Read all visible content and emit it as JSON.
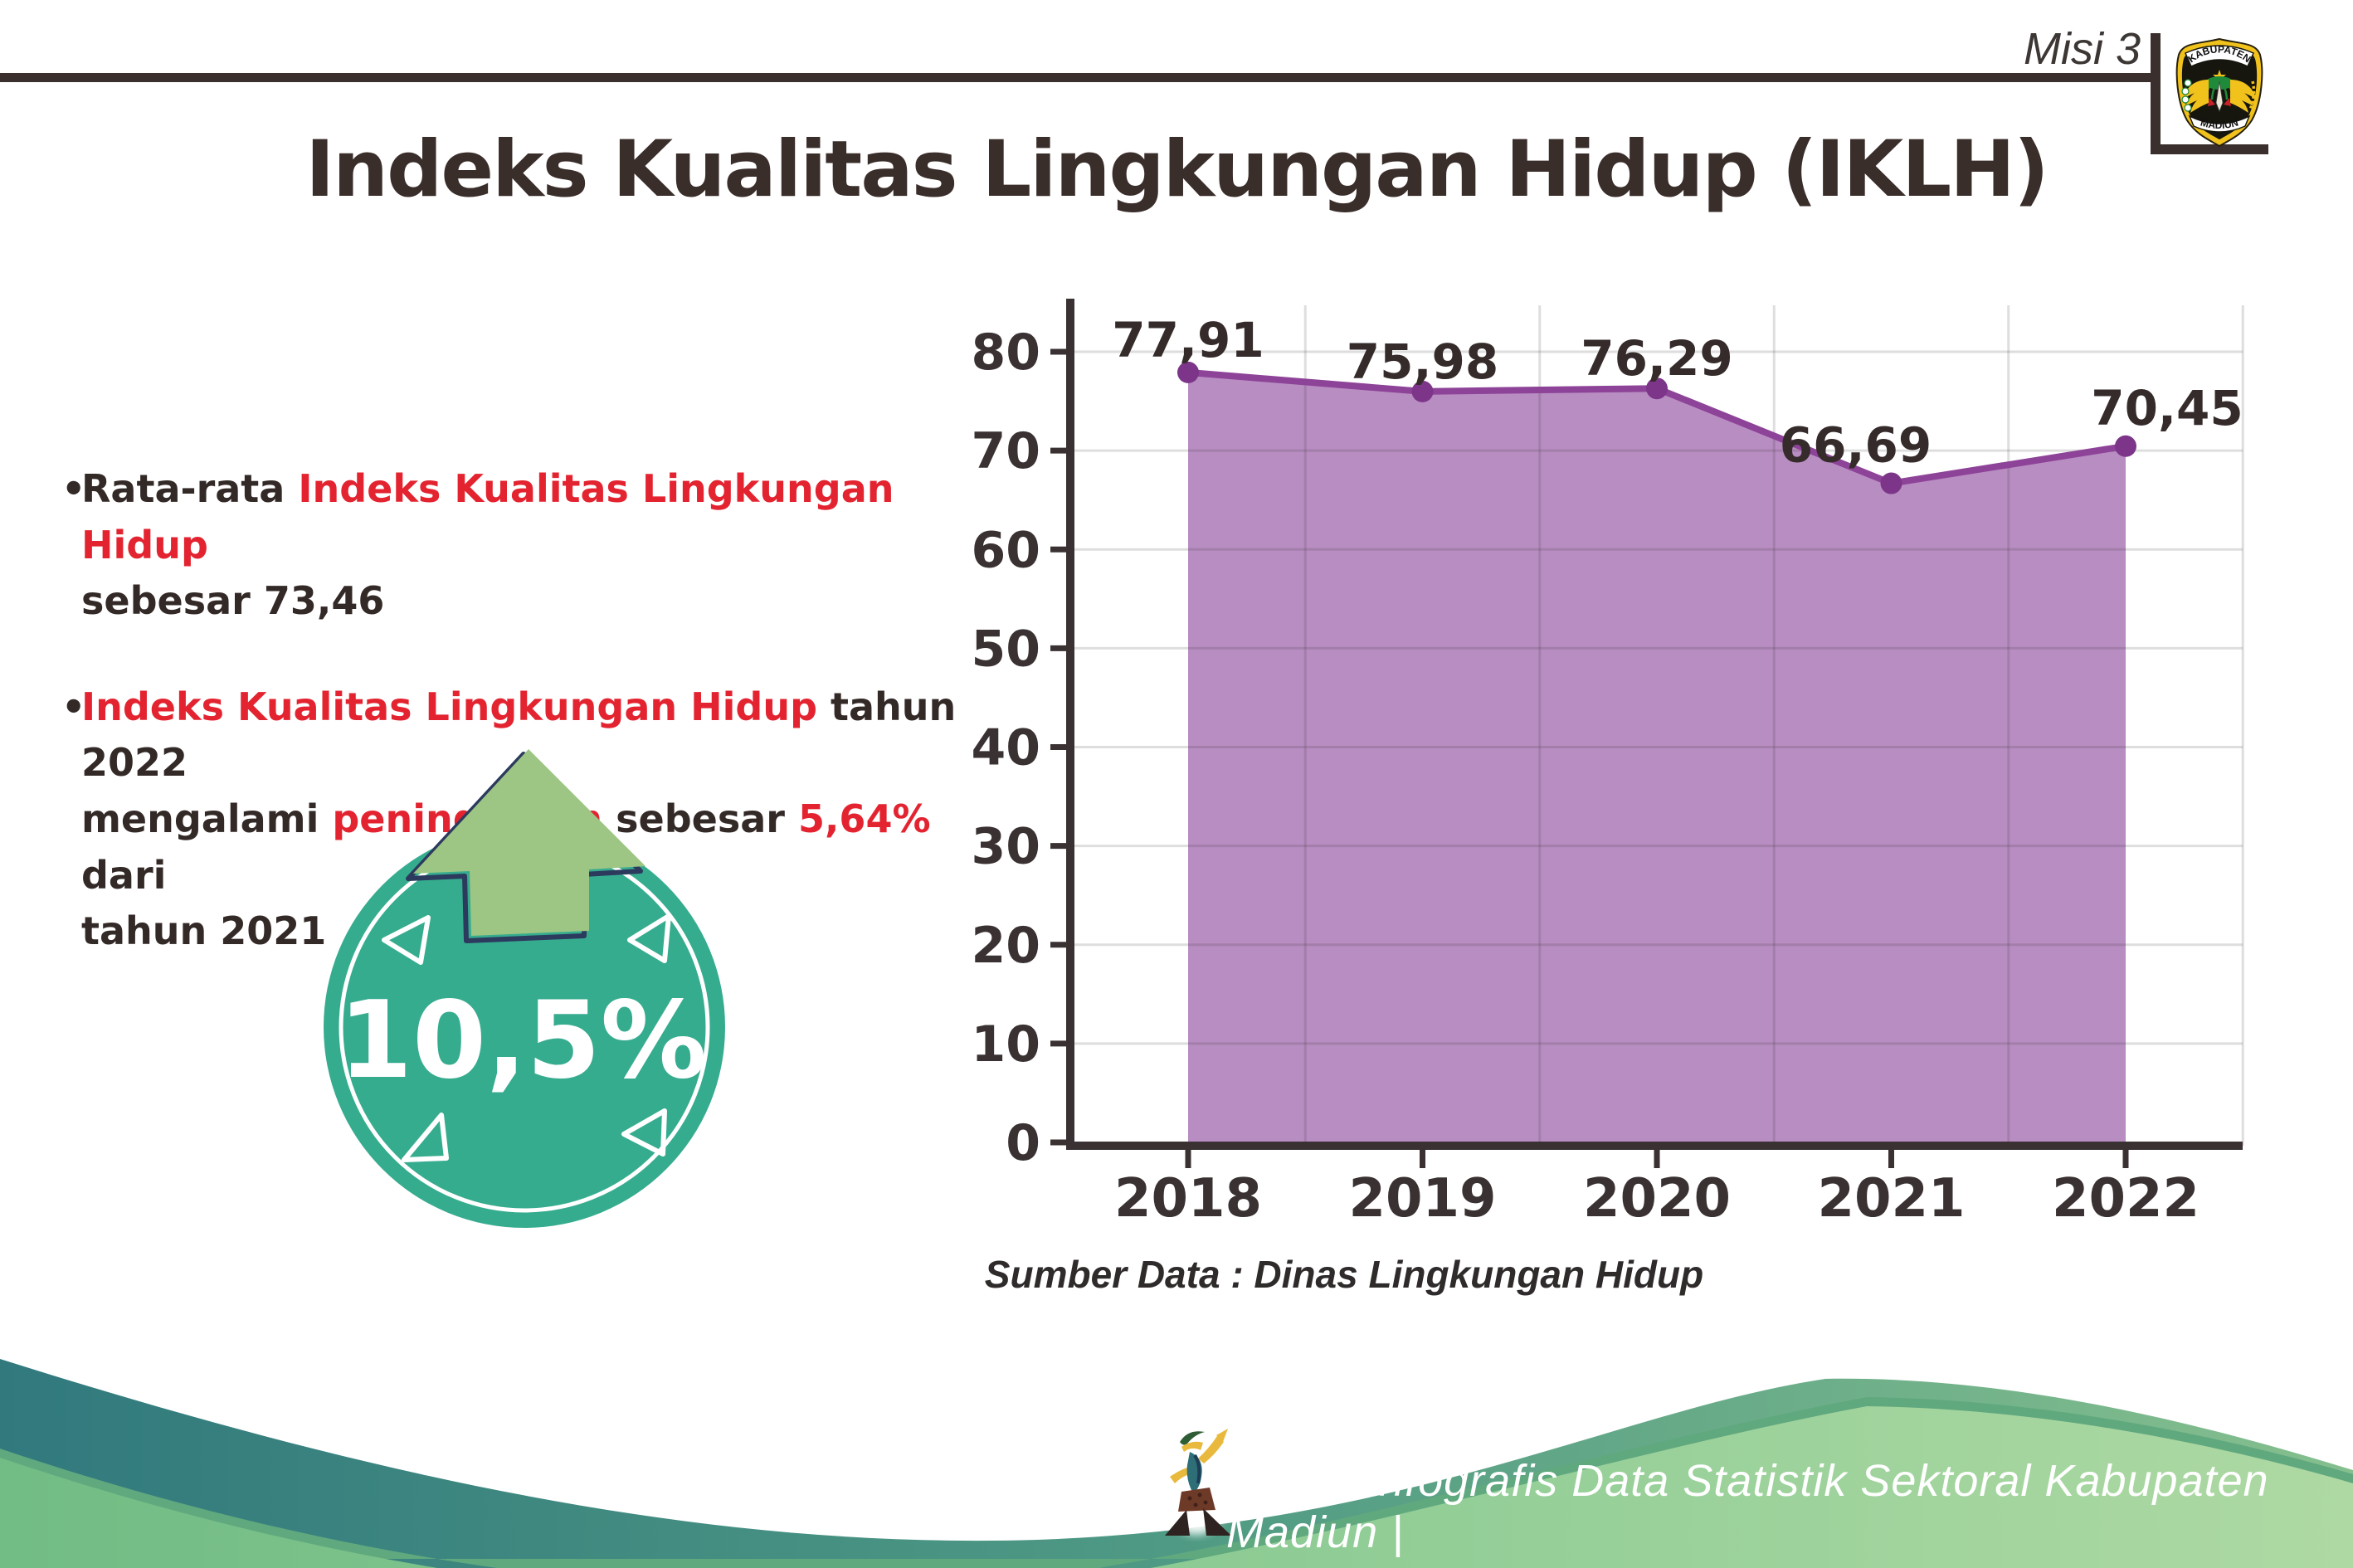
{
  "header": {
    "misi_label": "Misi 3",
    "title": "Indeks Kualitas Lingkungan Hidup (IKLH)",
    "logo_top": "KABUPATEN",
    "logo_bottom": "MADIUN"
  },
  "bullets": {
    "bullet_char": "•",
    "items": [
      {
        "segments": [
          {
            "text": "Rata-rata ",
            "color": "dark"
          },
          {
            "text": "Indeks Kualitas Lingkungan Hidup",
            "color": "red"
          },
          {
            "text": "\nsebesar 73,46",
            "color": "dark"
          }
        ]
      },
      {
        "segments": [
          {
            "text": "Indeks Kualitas Lingkungan Hidup",
            "color": "red"
          },
          {
            "text": " tahun 2022\nmengalami ",
            "color": "dark"
          },
          {
            "text": "peningkatan",
            "color": "red"
          },
          {
            "text": " sebesar ",
            "color": "dark"
          },
          {
            "text": "5,64%",
            "color": "red"
          },
          {
            "text": " dari\ntahun 2021",
            "color": "dark"
          }
        ]
      }
    ]
  },
  "badge": {
    "value_label": "10,5%",
    "arrow_direction": "up",
    "circle_color": "#36ac8f",
    "arrow_color": "#9dc583"
  },
  "chart_data": {
    "type": "area",
    "categories": [
      "2018",
      "2019",
      "2020",
      "2021",
      "2022"
    ],
    "values": [
      77.91,
      75.98,
      76.29,
      66.69,
      70.45
    ],
    "value_labels": [
      "77,91",
      "75,98",
      "76,29",
      "66,69",
      "70,45"
    ],
    "title": "",
    "xlabel": "",
    "ylabel": "",
    "ylim": [
      0,
      80
    ],
    "yticks": [
      0,
      10,
      20,
      30,
      40,
      50,
      60,
      70,
      80
    ],
    "grid": true,
    "legend": false,
    "source_note": "Sumber Data : Dinas Lingkungan Hidup",
    "colors": {
      "area_fill": "#b88dc2",
      "line": "#8d4397",
      "marker": "#7c3588",
      "axis": "#3a3132",
      "grid": "rgba(58,49,50,0.16)",
      "label": "#352b2b"
    }
  },
  "footer": {
    "credit_text": "Media Infografis Data Statistik Sektoral Kabupaten Madiun |"
  },
  "colors": {
    "ink": "#3a2f2c",
    "accent_red": "#e32430",
    "badge_teal": "#36ac8f",
    "arrow_green": "#9dc583",
    "arrow_outline_navy": "#2c3a5e",
    "wave_teal_dark": "#31797d",
    "wave_green_light": "#93cd97"
  }
}
